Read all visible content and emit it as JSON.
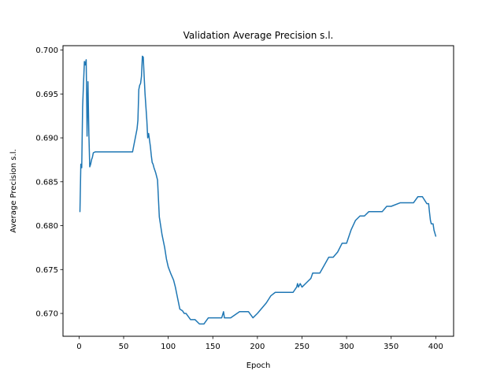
{
  "chart_data": {
    "type": "line",
    "title": "Validation Average Precision s.l.",
    "xlabel": "Epoch",
    "ylabel": "Average Precision s.l.",
    "xlim": [
      -18,
      420
    ],
    "ylim": [
      0.6674,
      0.7005
    ],
    "xticks": [
      0,
      50,
      100,
      150,
      200,
      250,
      300,
      350,
      400
    ],
    "yticks": [
      0.67,
      0.675,
      0.68,
      0.685,
      0.69,
      0.695,
      0.7
    ],
    "ytick_labels": [
      "0.670",
      "0.675",
      "0.680",
      "0.685",
      "0.690",
      "0.695",
      "0.700"
    ],
    "grid": false,
    "series": [
      {
        "color": "#1f77b4",
        "x": [
          1,
          2,
          3,
          4,
          5,
          6,
          7,
          8,
          9,
          10,
          11,
          12,
          13,
          14,
          15,
          16,
          18,
          20,
          22,
          25,
          30,
          40,
          50,
          60,
          65,
          66,
          67,
          68,
          69,
          70,
          71,
          72,
          73,
          74,
          75,
          76,
          77,
          78,
          80,
          81,
          82,
          83,
          84,
          85,
          86,
          88,
          90,
          93,
          96,
          98,
          100,
          103,
          106,
          108,
          110,
          113,
          116,
          118,
          120,
          125,
          130,
          135,
          140,
          145,
          150,
          155,
          160,
          162,
          163,
          165,
          170,
          180,
          190,
          195,
          200,
          210,
          215,
          220,
          230,
          240,
          244,
          245,
          246,
          248,
          250,
          255,
          260,
          262,
          265,
          270,
          275,
          280,
          285,
          290,
          295,
          300,
          305,
          310,
          315,
          320,
          325,
          330,
          340,
          345,
          350,
          360,
          370,
          375,
          380,
          385,
          390,
          392,
          393,
          394,
          395,
          397,
          398,
          400
        ],
        "y": [
          0.6816,
          0.687,
          0.6866,
          0.6935,
          0.6962,
          0.6987,
          0.6983,
          0.6989,
          0.6902,
          0.6964,
          0.6905,
          0.6867,
          0.687,
          0.6875,
          0.6878,
          0.6883,
          0.6884,
          0.6884,
          0.6884,
          0.6884,
          0.6884,
          0.6884,
          0.6884,
          0.6884,
          0.691,
          0.692,
          0.6955,
          0.696,
          0.6962,
          0.697,
          0.6993,
          0.6992,
          0.697,
          0.695,
          0.6935,
          0.692,
          0.69,
          0.6905,
          0.689,
          0.688,
          0.6872,
          0.687,
          0.6866,
          0.6863,
          0.686,
          0.6852,
          0.681,
          0.679,
          0.6775,
          0.6762,
          0.6753,
          0.6745,
          0.6738,
          0.673,
          0.672,
          0.6705,
          0.6703,
          0.67,
          0.67,
          0.6693,
          0.6693,
          0.6688,
          0.6688,
          0.6695,
          0.6695,
          0.6695,
          0.6695,
          0.6702,
          0.6695,
          0.6695,
          0.6695,
          0.6702,
          0.6702,
          0.6695,
          0.67,
          0.6712,
          0.672,
          0.6724,
          0.6724,
          0.6724,
          0.673,
          0.6734,
          0.673,
          0.6734,
          0.673,
          0.6735,
          0.674,
          0.6746,
          0.6746,
          0.6746,
          0.6755,
          0.6764,
          0.6764,
          0.677,
          0.678,
          0.678,
          0.6795,
          0.6806,
          0.6811,
          0.6811,
          0.6816,
          0.6816,
          0.6816,
          0.6822,
          0.6822,
          0.6826,
          0.6826,
          0.6826,
          0.6833,
          0.6833,
          0.6825,
          0.6825,
          0.6815,
          0.6806,
          0.6802,
          0.6802,
          0.6795,
          0.6788
        ]
      }
    ]
  }
}
